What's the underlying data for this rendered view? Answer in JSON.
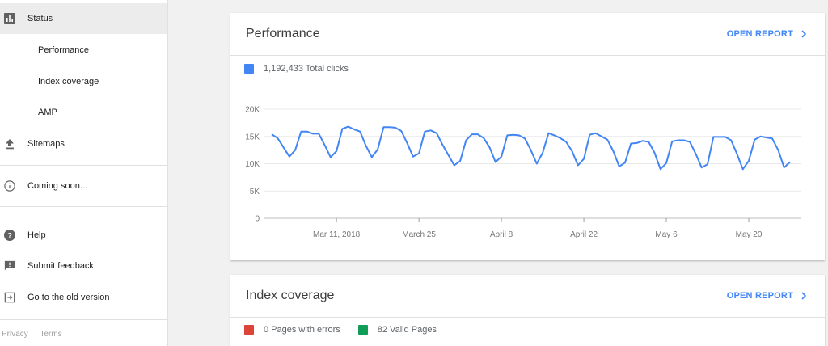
{
  "sidebar": {
    "status": {
      "label": "Status",
      "icon": "bar-chart-icon"
    },
    "sub_items": [
      {
        "label": "Performance"
      },
      {
        "label": "Index coverage"
      },
      {
        "label": "AMP"
      }
    ],
    "sitemaps": {
      "label": "Sitemaps",
      "icon": "upload-icon"
    },
    "coming_soon": {
      "label": "Coming soon...",
      "icon": "info-icon"
    },
    "help": {
      "label": "Help",
      "icon": "help-icon"
    },
    "feedback": {
      "label": "Submit feedback",
      "icon": "feedback-icon"
    },
    "old_version": {
      "label": "Go to the old version",
      "icon": "exit-icon"
    },
    "footer": {
      "privacy": "Privacy",
      "terms": "Terms"
    }
  },
  "performance": {
    "title": "Performance",
    "open_report": "OPEN REPORT",
    "legend": {
      "label": "1,192,433 Total clicks",
      "color": "#4285f4"
    }
  },
  "index_coverage": {
    "title": "Index coverage",
    "open_report": "OPEN REPORT",
    "legend": [
      {
        "label": "0 Pages with errors",
        "color": "#db4437"
      },
      {
        "label": "82 Valid Pages",
        "color": "#0f9d58"
      }
    ]
  },
  "colors": {
    "accent": "#4285f4",
    "line": "#4285f4",
    "grid": "#e8e8e8"
  },
  "chart_data": {
    "type": "line",
    "series": [
      {
        "name": "Total clicks",
        "values": [
          15400,
          14700,
          13000,
          11300,
          12500,
          15900,
          15900,
          15500,
          15500,
          13400,
          11200,
          12300,
          16400,
          16800,
          16300,
          15900,
          13300,
          11200,
          12600,
          16700,
          16700,
          16600,
          16000,
          13800,
          11300,
          11900,
          15900,
          16100,
          15600,
          13500,
          11600,
          9700,
          10500,
          14300,
          15400,
          15400,
          14700,
          13000,
          10300,
          11300,
          15200,
          15300,
          15200,
          14600,
          12500,
          10000,
          12000,
          15600,
          15200,
          14700,
          14000,
          12300,
          9700,
          10900,
          15300,
          15600,
          15000,
          14400,
          12300,
          9500,
          10200,
          13700,
          13800,
          14200,
          14000,
          12000,
          9000,
          10100,
          14100,
          14300,
          14300,
          14000,
          11800,
          9300,
          9900,
          14900,
          14900,
          14900,
          14300,
          11800,
          9000,
          10500,
          14400,
          15000,
          14800,
          14600,
          12500,
          9300,
          10300
        ]
      }
    ],
    "x_start": "Feb 28, 2018",
    "x_end": "May 27, 2018",
    "x_ticks": [
      "Mar 11, 2018",
      "March 25",
      "April 8",
      "April 22",
      "May 6",
      "May 20"
    ],
    "y_ticks": [
      "0",
      "5K",
      "10K",
      "15K",
      "20K"
    ],
    "ylim": [
      0,
      20000
    ],
    "grid": true
  }
}
